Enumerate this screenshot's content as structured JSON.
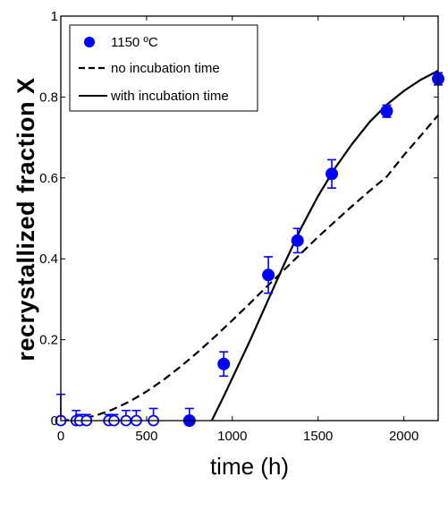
{
  "chart_data": {
    "type": "scatter",
    "xlabel": "time (h)",
    "ylabel": "recrystallized fraction X",
    "xlim": [
      0,
      2200
    ],
    "ylim": [
      0,
      1
    ],
    "xticks": [
      0,
      500,
      1000,
      1500,
      2000
    ],
    "xtick_labels": [
      "0",
      "500",
      "1000",
      "1500",
      "2000"
    ],
    "yticks": [
      0,
      0.2,
      0.4,
      0.6,
      0.8,
      1
    ],
    "ytick_labels": [
      "0",
      "0.2",
      "0.4",
      "0.6",
      "0.8",
      "1"
    ],
    "grid": false,
    "legend_position": "top-left",
    "series": [
      {
        "name": "1150 ºC",
        "kind": "points",
        "color": "#0000ff",
        "filled_points": [
          {
            "x": 750,
            "y": 0.0,
            "err": 0.03
          },
          {
            "x": 950,
            "y": 0.14,
            "err": 0.03
          },
          {
            "x": 1210,
            "y": 0.36,
            "err": 0.045
          },
          {
            "x": 1380,
            "y": 0.445,
            "err": 0.03
          },
          {
            "x": 1580,
            "y": 0.61,
            "err": 0.035
          },
          {
            "x": 1900,
            "y": 0.765,
            "err": 0.015
          },
          {
            "x": 2200,
            "y": 0.845,
            "err": 0.015
          }
        ],
        "open_points": [
          {
            "x": 0,
            "y": 0.0,
            "err": 0.065
          },
          {
            "x": 90,
            "y": 0.0,
            "err": 0.025
          },
          {
            "x": 110,
            "y": 0.0,
            "err": 0.015
          },
          {
            "x": 150,
            "y": 0.0,
            "err": 0.015
          },
          {
            "x": 280,
            "y": 0.0,
            "err": 0.015
          },
          {
            "x": 310,
            "y": 0.0,
            "err": 0.015
          },
          {
            "x": 380,
            "y": 0.0,
            "err": 0.025
          },
          {
            "x": 440,
            "y": 0.0,
            "err": 0.025
          },
          {
            "x": 540,
            "y": 0.0,
            "err": 0.03
          }
        ]
      },
      {
        "name": "no incubation time",
        "kind": "line",
        "dash": true,
        "color": "#000000",
        "x": [
          0,
          100,
          200,
          300,
          400,
          500,
          600,
          700,
          800,
          900,
          1000,
          1100,
          1200,
          1300,
          1400,
          1500,
          1600,
          1700,
          1800,
          1900,
          2000,
          2100,
          2200
        ],
        "y": [
          0.0,
          0.003,
          0.012,
          0.027,
          0.047,
          0.072,
          0.101,
          0.134,
          0.17,
          0.208,
          0.248,
          0.289,
          0.331,
          0.372,
          0.413,
          0.454,
          0.493,
          0.531,
          0.568,
          0.603,
          0.656,
          0.705,
          0.755
        ]
      },
      {
        "name": "with incubation time",
        "kind": "line",
        "dash": false,
        "color": "#000000",
        "x": [
          880,
          950,
          1000,
          1100,
          1200,
          1300,
          1400,
          1500,
          1600,
          1700,
          1800,
          1900,
          2000,
          2100,
          2200
        ],
        "y": [
          0.0,
          0.06,
          0.105,
          0.195,
          0.29,
          0.385,
          0.475,
          0.555,
          0.625,
          0.685,
          0.738,
          0.781,
          0.815,
          0.843,
          0.865
        ]
      }
    ]
  }
}
